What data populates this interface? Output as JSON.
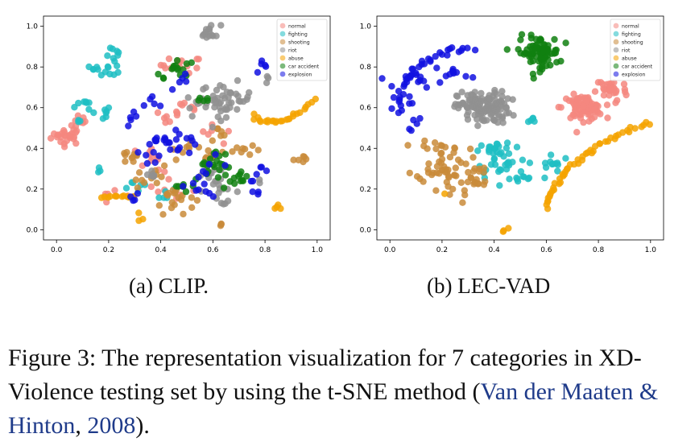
{
  "caption": {
    "part1": "Figure 3: The representation visualization for 7 categories in XD-Violence testing set by using the t-SNE method (",
    "ref_authors": "Van der Maaten & Hinton",
    "sep": ", ",
    "ref_year": "2008",
    "end": ")."
  },
  "chart_data": [
    {
      "type": "scatter",
      "subcaption": "(a) CLIP.",
      "xlabel": "",
      "ylabel": "",
      "xlim": [
        -0.05,
        1.05
      ],
      "ylim": [
        -0.05,
        1.05
      ],
      "xticks": [
        "0.0",
        "0.2",
        "0.4",
        "0.6",
        "0.8",
        "1.0"
      ],
      "yticks": [
        "0.0",
        "0.2",
        "0.4",
        "0.6",
        "0.8",
        "1.0"
      ],
      "legend_position": "top-right",
      "grid": false,
      "series": [
        {
          "name": "normal",
          "color": "#f4877f",
          "clusters": [
            [
              0.04,
              0.46,
              0.03,
              0.02,
              25
            ],
            [
              0.09,
              0.52,
              0.02,
              0.02,
              10
            ],
            [
              0.48,
              0.81,
              0.04,
              0.02,
              15
            ],
            [
              0.43,
              0.55,
              0.02,
              0.02,
              6
            ],
            [
              0.33,
              0.36,
              0.04,
              0.03,
              8
            ],
            [
              0.22,
              0.16,
              0.03,
              0.02,
              6
            ],
            [
              0.42,
              0.22,
              0.05,
              0.05,
              10
            ],
            [
              0.48,
              0.6,
              0.04,
              0.03,
              8
            ],
            [
              0.6,
              0.45,
              0.04,
              0.04,
              6
            ]
          ]
        },
        {
          "name": "fighting",
          "color": "#1fbec3",
          "clusters": [
            [
              0.23,
              0.85,
              0.02,
              0.02,
              8
            ],
            [
              0.21,
              0.79,
              0.02,
              0.02,
              8
            ],
            [
              0.14,
              0.79,
              0.01,
              0.01,
              5
            ],
            [
              0.1,
              0.63,
              0.02,
              0.02,
              6
            ],
            [
              0.17,
              0.57,
              0.02,
              0.02,
              8
            ],
            [
              0.08,
              0.54,
              0.01,
              0.01,
              3
            ],
            [
              0.16,
              0.3,
              0.01,
              0.01,
              3
            ],
            [
              0.3,
              0.21,
              0.03,
              0.02,
              6
            ],
            [
              0.42,
              0.19,
              0.03,
              0.03,
              6
            ]
          ]
        },
        {
          "name": "shooting",
          "color": "#c98b3a",
          "clusters": [
            [
              0.3,
              0.36,
              0.04,
              0.02,
              10
            ],
            [
              0.37,
              0.27,
              0.03,
              0.03,
              12
            ],
            [
              0.45,
              0.16,
              0.04,
              0.04,
              20
            ],
            [
              0.49,
              0.39,
              0.03,
              0.02,
              8
            ],
            [
              0.6,
              0.37,
              0.03,
              0.03,
              8
            ],
            [
              0.72,
              0.4,
              0.03,
              0.02,
              8
            ],
            [
              0.62,
              0.48,
              0.03,
              0.02,
              5
            ],
            [
              0.93,
              0.35,
              0.01,
              0.01,
              6
            ],
            [
              0.63,
              0.02,
              0.01,
              0.01,
              3
            ]
          ]
        },
        {
          "name": "riot",
          "color": "#909090",
          "clusters": [
            [
              0.59,
              0.97,
              0.02,
              0.02,
              15
            ],
            [
              0.65,
              0.64,
              0.05,
              0.04,
              45
            ],
            [
              0.54,
              0.6,
              0.02,
              0.02,
              6
            ],
            [
              0.62,
              0.2,
              0.04,
              0.04,
              18
            ],
            [
              0.57,
              0.29,
              0.02,
              0.02,
              6
            ],
            [
              0.82,
              0.74,
              0.01,
              0.01,
              3
            ],
            [
              0.36,
              0.25,
              0.02,
              0.02,
              6
            ],
            [
              0.78,
              0.23,
              0.01,
              0.01,
              2
            ]
          ]
        },
        {
          "name": "abuse",
          "color": "#f5a300",
          "curves": [
            {
              "p": [
                [
                  0.76,
                  0.56
                ],
                [
                  0.85,
                  0.47
                ],
                [
                  0.99,
                  0.64
                ]
              ],
              "n": 26,
              "jx": 0.005,
              "jy": 0.006
            },
            {
              "p": [
                [
                  0.17,
                  0.16
                ],
                [
                  0.25,
                  0.17
                ],
                [
                  0.3,
                  0.16
                ]
              ],
              "n": 12,
              "jx": 0.003,
              "jy": 0.004
            }
          ],
          "clusters": [
            [
              0.32,
              0.05,
              0.01,
              0.01,
              3
            ],
            [
              0.85,
              0.11,
              0.01,
              0.01,
              4
            ]
          ]
        },
        {
          "name": "car accident",
          "color": "#108010",
          "clusters": [
            [
              0.47,
              0.79,
              0.03,
              0.02,
              12
            ],
            [
              0.4,
              0.75,
              0.01,
              0.01,
              3
            ],
            [
              0.58,
              0.3,
              0.03,
              0.03,
              10
            ],
            [
              0.68,
              0.25,
              0.04,
              0.03,
              15
            ],
            [
              0.62,
              0.34,
              0.02,
              0.02,
              8
            ],
            [
              0.49,
              0.22,
              0.03,
              0.02,
              8
            ],
            [
              0.56,
              0.62,
              0.02,
              0.02,
              5
            ]
          ]
        },
        {
          "name": "explosion",
          "color": "#1010e0",
          "clusters": [
            [
              0.29,
              0.53,
              0.02,
              0.02,
              5
            ],
            [
              0.38,
              0.63,
              0.02,
              0.02,
              5
            ],
            [
              0.49,
              0.74,
              0.02,
              0.02,
              5
            ],
            [
              0.42,
              0.44,
              0.04,
              0.02,
              12
            ],
            [
              0.37,
              0.36,
              0.02,
              0.02,
              6
            ],
            [
              0.3,
              0.14,
              0.01,
              0.02,
              4
            ],
            [
              0.47,
              0.45,
              0.04,
              0.04,
              12
            ],
            [
              0.58,
              0.25,
              0.05,
              0.05,
              14
            ],
            [
              0.78,
              0.28,
              0.02,
              0.02,
              6
            ],
            [
              0.8,
              0.8,
              0.02,
              0.02,
              5
            ],
            [
              0.76,
              0.18,
              0.01,
              0.01,
              3
            ]
          ]
        }
      ]
    },
    {
      "type": "scatter",
      "subcaption": "(b) LEC-VAD",
      "xlabel": "",
      "ylabel": "",
      "xlim": [
        -0.05,
        1.05
      ],
      "ylim": [
        -0.05,
        1.05
      ],
      "xticks": [
        "0.0",
        "0.2",
        "0.4",
        "0.6",
        "0.8",
        "1.0"
      ],
      "yticks": [
        "0.0",
        "0.2",
        "0.4",
        "0.6",
        "0.8",
        "1.0"
      ],
      "legend_position": "top-right",
      "grid": false,
      "series": [
        {
          "name": "normal",
          "color": "#f4877f",
          "clusters": [
            [
              0.74,
              0.6,
              0.04,
              0.03,
              85
            ],
            [
              0.85,
              0.69,
              0.03,
              0.03,
              30
            ]
          ]
        },
        {
          "name": "fighting",
          "color": "#1fbec3",
          "clusters": [
            [
              0.43,
              0.36,
              0.05,
              0.05,
              35
            ],
            [
              0.63,
              0.32,
              0.03,
              0.04,
              12
            ],
            [
              0.55,
              0.53,
              0.01,
              0.01,
              5
            ],
            [
              0.48,
              0.25,
              0.04,
              0.02,
              10
            ],
            [
              0.38,
              0.4,
              0.02,
              0.02,
              6
            ]
          ]
        },
        {
          "name": "shooting",
          "color": "#c98b3a",
          "clusters": [
            [
              0.2,
              0.35,
              0.05,
              0.06,
              45
            ],
            [
              0.33,
              0.26,
              0.03,
              0.04,
              15
            ],
            [
              0.22,
              0.21,
              0.05,
              0.04,
              15
            ]
          ]
        },
        {
          "name": "riot",
          "color": "#909090",
          "clusters": [
            [
              0.36,
              0.6,
              0.05,
              0.04,
              130
            ]
          ]
        },
        {
          "name": "abuse",
          "color": "#f5a300",
          "curves": [
            {
              "p": [
                [
                  0.6,
                  0.11
                ],
                [
                  0.65,
                  0.37
                ],
                [
                  1.0,
                  0.53
                ]
              ],
              "n": 50,
              "jx": 0.005,
              "jy": 0.006
            }
          ],
          "clusters": [
            [
              0.45,
              0.01,
              0.01,
              0.01,
              3
            ],
            [
              0.2,
              0.16,
              0.01,
              0.01,
              1
            ]
          ]
        },
        {
          "name": "car accident",
          "color": "#108010",
          "clusters": [
            [
              0.57,
              0.87,
              0.04,
              0.04,
              80
            ]
          ]
        },
        {
          "name": "explosion",
          "color": "#1010e0",
          "curves": [
            {
              "p": [
                [
                  0.03,
                  0.58
                ],
                [
                  0.07,
                  0.9
                ],
                [
                  0.32,
                  0.88
                ]
              ],
              "n": 34,
              "jx": 0.008,
              "jy": 0.008
            }
          ],
          "clusters": [
            [
              0.12,
              0.74,
              0.04,
              0.02,
              14
            ],
            [
              0.24,
              0.77,
              0.03,
              0.02,
              10
            ],
            [
              0.05,
              0.63,
              0.02,
              0.02,
              6
            ],
            [
              0.1,
              0.53,
              0.02,
              0.02,
              5
            ]
          ]
        }
      ]
    }
  ]
}
